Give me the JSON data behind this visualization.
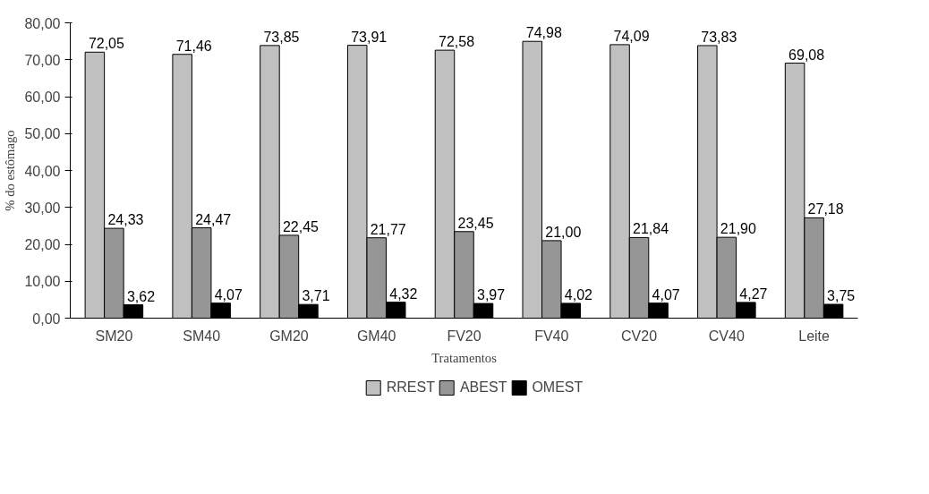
{
  "chart_data": {
    "type": "bar",
    "xlabel": "Tratamentos",
    "ylabel": "% do estômago",
    "categories": [
      "SM20",
      "SM40",
      "GM20",
      "GM40",
      "FV20",
      "FV40",
      "CV20",
      "CV40",
      "Leite"
    ],
    "series": [
      {
        "name": "RREST",
        "color": "#c0c0c0",
        "values": [
          72.05,
          71.46,
          73.85,
          73.91,
          72.58,
          74.98,
          74.09,
          73.83,
          69.08
        ],
        "value_labels": [
          "72,05",
          "71,46",
          "73,85",
          "73,91",
          "72,58",
          "74,98",
          "74,09",
          "73,83",
          "69,08"
        ]
      },
      {
        "name": "ABEST",
        "color": "#969696",
        "values": [
          24.33,
          24.47,
          22.45,
          21.77,
          23.45,
          21.0,
          21.84,
          21.9,
          27.18
        ],
        "value_labels": [
          "24,33",
          "24,47",
          "22,45",
          "21,77",
          "23,45",
          "21,00",
          "21,84",
          "21,90",
          "27,18"
        ]
      },
      {
        "name": "OMEST",
        "color": "#000000",
        "values": [
          3.62,
          4.07,
          3.71,
          4.32,
          3.97,
          4.02,
          4.07,
          4.27,
          3.75
        ],
        "value_labels": [
          "3,62",
          "4,07",
          "3,71",
          "4,32",
          "3,97",
          "4,02",
          "4,07",
          "4,27",
          "3,75"
        ]
      }
    ],
    "ylim": [
      0,
      80
    ],
    "yticks": [
      {
        "value": 0,
        "label": "0,00"
      },
      {
        "value": 10,
        "label": "10,00"
      },
      {
        "value": 20,
        "label": "20,00"
      },
      {
        "value": 30,
        "label": "30,00"
      },
      {
        "value": 40,
        "label": "40,00"
      },
      {
        "value": 50,
        "label": "50,00"
      },
      {
        "value": 60,
        "label": "60,00"
      },
      {
        "value": 70,
        "label": "70,00"
      },
      {
        "value": 80,
        "label": "80,00"
      }
    ],
    "grid": false,
    "legend": "bottom"
  }
}
